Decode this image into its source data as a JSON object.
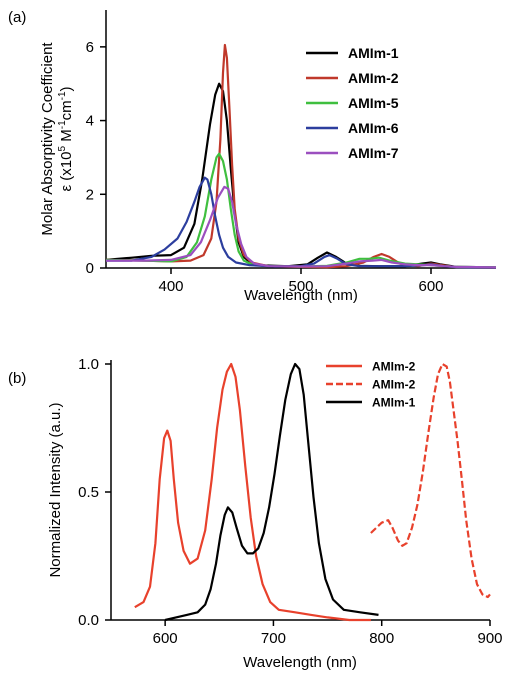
{
  "chart_data": [
    {
      "panel_label": "(a)",
      "type": "line",
      "xlabel": "Wavelength (nm)",
      "ylabel_line1": "Molar Absorptivity Coefficient",
      "ylabel_line2": "ε (x10",
      "ylabel_sup1": "5",
      "ylabel_mid": " M",
      "ylabel_sup2": "-1",
      "ylabel_mid2": "cm",
      "ylabel_sup3": "-1",
      "ylabel_end": ")",
      "xlim": [
        350,
        650
      ],
      "ylim": [
        0,
        7
      ],
      "xticks": [
        400,
        500,
        600
      ],
      "yticks": [
        0,
        2,
        4,
        6
      ],
      "legend_position": "top-right",
      "series": [
        {
          "name": "AMIm-1",
          "color": "#000000",
          "points": [
            [
              350,
              0.22
            ],
            [
              370,
              0.28
            ],
            [
              385,
              0.33
            ],
            [
              400,
              0.35
            ],
            [
              410,
              0.55
            ],
            [
              418,
              1.2
            ],
            [
              424,
              2.4
            ],
            [
              430,
              3.9
            ],
            [
              434,
              4.7
            ],
            [
              437,
              5.0
            ],
            [
              440,
              4.8
            ],
            [
              443,
              4.0
            ],
            [
              446,
              2.7
            ],
            [
              449,
              1.5
            ],
            [
              452,
              0.7
            ],
            [
              456,
              0.3
            ],
            [
              462,
              0.12
            ],
            [
              470,
              0.07
            ],
            [
              490,
              0.05
            ],
            [
              505,
              0.1
            ],
            [
              513,
              0.28
            ],
            [
              520,
              0.42
            ],
            [
              527,
              0.3
            ],
            [
              535,
              0.12
            ],
            [
              545,
              0.06
            ],
            [
              560,
              0.05
            ],
            [
              580,
              0.05
            ],
            [
              593,
              0.12
            ],
            [
              600,
              0.15
            ],
            [
              607,
              0.1
            ],
            [
              620,
              0.03
            ],
            [
              650,
              0.02
            ]
          ]
        },
        {
          "name": "AMIm-2",
          "color": "#c0392b",
          "points": [
            [
              350,
              0.22
            ],
            [
              380,
              0.2
            ],
            [
              400,
              0.18
            ],
            [
              415,
              0.2
            ],
            [
              425,
              0.35
            ],
            [
              431,
              0.8
            ],
            [
              435,
              1.8
            ],
            [
              438,
              3.5
            ],
            [
              440,
              5.3
            ],
            [
              441.5,
              6.05
            ],
            [
              443,
              5.7
            ],
            [
              445,
              4.3
            ],
            [
              447,
              2.8
            ],
            [
              449,
              1.6
            ],
            [
              452,
              0.8
            ],
            [
              456,
              0.35
            ],
            [
              462,
              0.15
            ],
            [
              475,
              0.05
            ],
            [
              500,
              0.03
            ],
            [
              520,
              0.02
            ],
            [
              535,
              0.05
            ],
            [
              548,
              0.15
            ],
            [
              556,
              0.3
            ],
            [
              562,
              0.38
            ],
            [
              568,
              0.3
            ],
            [
              576,
              0.12
            ],
            [
              590,
              0.05
            ],
            [
              600,
              0.12
            ],
            [
              608,
              0.08
            ],
            [
              620,
              0.02
            ],
            [
              650,
              0.01
            ]
          ]
        },
        {
          "name": "AMIm-5",
          "color": "#3fbf3f",
          "points": [
            [
              350,
              0.22
            ],
            [
              380,
              0.2
            ],
            [
              400,
              0.18
            ],
            [
              412,
              0.3
            ],
            [
              420,
              0.7
            ],
            [
              426,
              1.4
            ],
            [
              431,
              2.4
            ],
            [
              435,
              3.0
            ],
            [
              437,
              3.1
            ],
            [
              440,
              2.9
            ],
            [
              443,
              2.4
            ],
            [
              446,
              1.6
            ],
            [
              449,
              0.9
            ],
            [
              452,
              0.45
            ],
            [
              456,
              0.2
            ],
            [
              462,
              0.1
            ],
            [
              475,
              0.05
            ],
            [
              500,
              0.04
            ],
            [
              520,
              0.06
            ],
            [
              535,
              0.15
            ],
            [
              545,
              0.25
            ],
            [
              552,
              0.25
            ],
            [
              560,
              0.28
            ],
            [
              568,
              0.2
            ],
            [
              580,
              0.12
            ],
            [
              590,
              0.1
            ],
            [
              600,
              0.08
            ],
            [
              610,
              0.05
            ],
            [
              620,
              0.03
            ],
            [
              650,
              0.02
            ]
          ]
        },
        {
          "name": "AMIm-6",
          "color": "#2c3e9e",
          "points": [
            [
              350,
              0.2
            ],
            [
              370,
              0.2
            ],
            [
              385,
              0.3
            ],
            [
              395,
              0.5
            ],
            [
              405,
              0.8
            ],
            [
              412,
              1.25
            ],
            [
              418,
              1.8
            ],
            [
              422,
              2.2
            ],
            [
              426,
              2.45
            ],
            [
              428,
              2.4
            ],
            [
              431,
              2.0
            ],
            [
              434,
              1.4
            ],
            [
              437,
              0.9
            ],
            [
              440,
              0.55
            ],
            [
              444,
              0.3
            ],
            [
              450,
              0.15
            ],
            [
              460,
              0.08
            ],
            [
              480,
              0.04
            ],
            [
              500,
              0.05
            ],
            [
              510,
              0.12
            ],
            [
              518,
              0.3
            ],
            [
              522,
              0.35
            ],
            [
              528,
              0.25
            ],
            [
              535,
              0.1
            ],
            [
              545,
              0.05
            ],
            [
              565,
              0.05
            ],
            [
              580,
              0.05
            ],
            [
              595,
              0.08
            ],
            [
              600,
              0.1
            ],
            [
              610,
              0.05
            ],
            [
              620,
              0.02
            ],
            [
              650,
              0.01
            ]
          ]
        },
        {
          "name": "AMIm-7",
          "color": "#9b4fbf",
          "points": [
            [
              350,
              0.2
            ],
            [
              380,
              0.2
            ],
            [
              400,
              0.22
            ],
            [
              415,
              0.35
            ],
            [
              423,
              0.7
            ],
            [
              430,
              1.3
            ],
            [
              436,
              1.9
            ],
            [
              441,
              2.2
            ],
            [
              444,
              2.15
            ],
            [
              447,
              1.8
            ],
            [
              450,
              1.2
            ],
            [
              454,
              0.65
            ],
            [
              458,
              0.3
            ],
            [
              464,
              0.12
            ],
            [
              475,
              0.05
            ],
            [
              500,
              0.04
            ],
            [
              520,
              0.05
            ],
            [
              535,
              0.12
            ],
            [
              545,
              0.18
            ],
            [
              555,
              0.2
            ],
            [
              562,
              0.22
            ],
            [
              570,
              0.15
            ],
            [
              580,
              0.1
            ],
            [
              590,
              0.08
            ],
            [
              600,
              0.08
            ],
            [
              610,
              0.05
            ],
            [
              620,
              0.03
            ],
            [
              650,
              0.02
            ]
          ]
        }
      ]
    },
    {
      "panel_label": "(b)",
      "type": "line",
      "xlabel": "Wavelength (nm)",
      "ylabel": "Normalized Intensity (a.u.)",
      "xlim": [
        550,
        900
      ],
      "ylim": [
        0,
        1.0
      ],
      "xticks": [
        600,
        700,
        800,
        900
      ],
      "yticks": [
        0.0,
        0.5,
        1.0
      ],
      "ytick_labels": [
        "0.0",
        "0.5",
        "1.0"
      ],
      "legend_position": "top-right",
      "series": [
        {
          "name": "AMIm-2",
          "color": "#e8412c",
          "dash": "solid",
          "points": [
            [
              572,
              0.05
            ],
            [
              580,
              0.07
            ],
            [
              586,
              0.13
            ],
            [
              591,
              0.3
            ],
            [
              595,
              0.55
            ],
            [
              599,
              0.71
            ],
            [
              602,
              0.74
            ],
            [
              605,
              0.7
            ],
            [
              608,
              0.55
            ],
            [
              612,
              0.38
            ],
            [
              617,
              0.27
            ],
            [
              623,
              0.22
            ],
            [
              630,
              0.24
            ],
            [
              637,
              0.35
            ],
            [
              643,
              0.55
            ],
            [
              648,
              0.75
            ],
            [
              653,
              0.9
            ],
            [
              657,
              0.97
            ],
            [
              661,
              1.0
            ],
            [
              665,
              0.95
            ],
            [
              669,
              0.82
            ],
            [
              674,
              0.6
            ],
            [
              679,
              0.4
            ],
            [
              684,
              0.25
            ],
            [
              690,
              0.14
            ],
            [
              697,
              0.07
            ],
            [
              705,
              0.04
            ],
            [
              720,
              0.03
            ],
            [
              735,
              0.02
            ],
            [
              750,
              0.01
            ],
            [
              770,
              0.0
            ],
            [
              790,
              0.0
            ]
          ]
        },
        {
          "name": "AMIm-2",
          "color": "#e8412c",
          "dash": "dashed",
          "points": [
            [
              790,
              0.34
            ],
            [
              795,
              0.36
            ],
            [
              800,
              0.38
            ],
            [
              806,
              0.39
            ],
            [
              810,
              0.36
            ],
            [
              815,
              0.31
            ],
            [
              819,
              0.29
            ],
            [
              823,
              0.3
            ],
            [
              828,
              0.36
            ],
            [
              833,
              0.45
            ],
            [
              838,
              0.58
            ],
            [
              843,
              0.73
            ],
            [
              848,
              0.87
            ],
            [
              852,
              0.96
            ],
            [
              856,
              1.0
            ],
            [
              860,
              0.99
            ],
            [
              863,
              0.93
            ],
            [
              866,
              0.83
            ],
            [
              870,
              0.7
            ],
            [
              874,
              0.55
            ],
            [
              878,
              0.39
            ],
            [
              883,
              0.24
            ],
            [
              888,
              0.14
            ],
            [
              893,
              0.1
            ],
            [
              898,
              0.09
            ],
            [
              900,
              0.1
            ]
          ]
        },
        {
          "name": "AMIm-1",
          "color": "#000000",
          "dash": "solid",
          "points": [
            [
              600,
              0.0
            ],
            [
              610,
              0.01
            ],
            [
              620,
              0.02
            ],
            [
              630,
              0.03
            ],
            [
              637,
              0.06
            ],
            [
              642,
              0.12
            ],
            [
              647,
              0.22
            ],
            [
              651,
              0.33
            ],
            [
              655,
              0.41
            ],
            [
              658,
              0.44
            ],
            [
              662,
              0.42
            ],
            [
              666,
              0.36
            ],
            [
              671,
              0.29
            ],
            [
              676,
              0.26
            ],
            [
              681,
              0.26
            ],
            [
              686,
              0.28
            ],
            [
              691,
              0.34
            ],
            [
              696,
              0.44
            ],
            [
              701,
              0.57
            ],
            [
              706,
              0.72
            ],
            [
              711,
              0.86
            ],
            [
              716,
              0.96
            ],
            [
              720,
              1.0
            ],
            [
              724,
              0.98
            ],
            [
              728,
              0.88
            ],
            [
              732,
              0.7
            ],
            [
              737,
              0.48
            ],
            [
              742,
              0.3
            ],
            [
              748,
              0.16
            ],
            [
              755,
              0.08
            ],
            [
              765,
              0.04
            ],
            [
              780,
              0.03
            ],
            [
              797,
              0.02
            ]
          ]
        }
      ]
    }
  ]
}
